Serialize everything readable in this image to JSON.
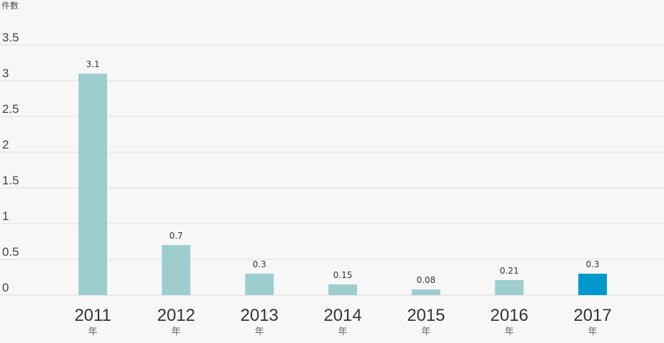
{
  "chart_data": {
    "type": "bar",
    "unit_label": "件數",
    "categories": [
      "2011",
      "2012",
      "2013",
      "2014",
      "2015",
      "2016",
      "2017"
    ],
    "category_suffix": "年",
    "values": [
      3.1,
      0.7,
      0.3,
      0.15,
      0.08,
      0.21,
      0.3
    ],
    "value_labels": [
      "3.1",
      "0.7",
      "0.3",
      "0.15",
      "0.08",
      "0.21",
      "0.3"
    ],
    "ylim": [
      0,
      3.5
    ],
    "yticks": [
      0,
      0.5,
      1,
      1.5,
      2,
      2.5,
      3,
      3.5
    ],
    "ytick_labels": [
      "0",
      "0.5",
      "1",
      "1.5",
      "2",
      "2.5",
      "3",
      "3.5"
    ],
    "grid": true,
    "colors": {
      "bar": "#9dcdcf",
      "highlight_bar": "#0099cc",
      "highlight_category": "2017",
      "grid": "#dddddd",
      "background": "#f7f7f7"
    }
  }
}
